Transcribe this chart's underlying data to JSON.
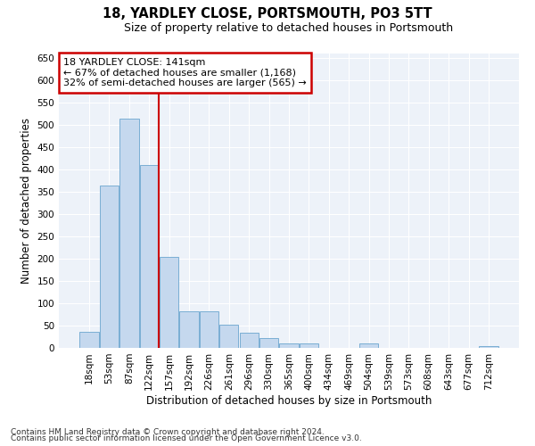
{
  "title": "18, YARDLEY CLOSE, PORTSMOUTH, PO3 5TT",
  "subtitle": "Size of property relative to detached houses in Portsmouth",
  "xlabel": "Distribution of detached houses by size in Portsmouth",
  "ylabel": "Number of detached properties",
  "categories": [
    "18sqm",
    "53sqm",
    "87sqm",
    "122sqm",
    "157sqm",
    "192sqm",
    "226sqm",
    "261sqm",
    "296sqm",
    "330sqm",
    "365sqm",
    "400sqm",
    "434sqm",
    "469sqm",
    "504sqm",
    "539sqm",
    "573sqm",
    "608sqm",
    "643sqm",
    "677sqm",
    "712sqm"
  ],
  "values": [
    37,
    365,
    515,
    410,
    205,
    83,
    83,
    53,
    35,
    22,
    10,
    10,
    0,
    0,
    10,
    0,
    0,
    0,
    0,
    0,
    5
  ],
  "bar_color": "#c5d8ee",
  "bar_edge_color": "#7aaed4",
  "vline_color": "#cc0000",
  "annotation_line1": "18 YARDLEY CLOSE: 141sqm",
  "annotation_line2": "← 67% of detached houses are smaller (1,168)",
  "annotation_line3": "32% of semi-detached houses are larger (565) →",
  "annotation_box_color": "#ffffff",
  "annotation_box_edge_color": "#cc0000",
  "ylim": [
    0,
    660
  ],
  "yticks": [
    0,
    50,
    100,
    150,
    200,
    250,
    300,
    350,
    400,
    450,
    500,
    550,
    600,
    650
  ],
  "footnote1": "Contains HM Land Registry data © Crown copyright and database right 2024.",
  "footnote2": "Contains public sector information licensed under the Open Government Licence v3.0.",
  "bg_color": "#ffffff",
  "plot_bg_color": "#edf2f9",
  "grid_color": "#ffffff",
  "title_fontsize": 10.5,
  "subtitle_fontsize": 9,
  "axis_label_fontsize": 8.5,
  "tick_fontsize": 7.5,
  "annotation_fontsize": 8,
  "footnote_fontsize": 6.5
}
